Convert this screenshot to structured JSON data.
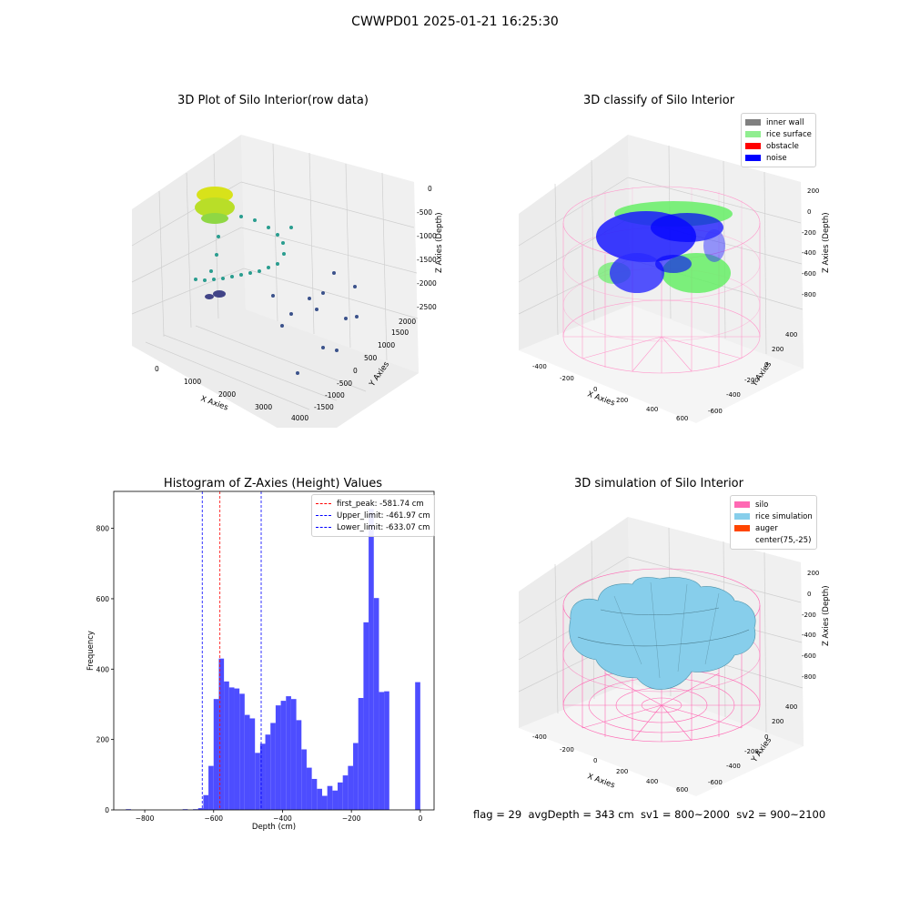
{
  "figure": {
    "suptitle": "CWWPD01 2025-01-21 16:25:30",
    "status_text": "flag = 29  avgDepth = 343 cm  sv1 = 800~2000  sv2 = 900~2100"
  },
  "chart_data": [
    {
      "type": "scatter",
      "projection": "3d",
      "title": "3D Plot of Silo Interior(row data)",
      "xlabel": "X Axies",
      "ylabel": "Y Axies",
      "zlabel": "Z Axies (Depth)",
      "x_ticks": [
        "0",
        "1000",
        "2000",
        "3000",
        "4000"
      ],
      "y_ticks": [
        "-1500",
        "-1000",
        "-500",
        "0",
        "500",
        "1000",
        "1500",
        "2000"
      ],
      "z_ticks": [
        "-2500",
        "-2000",
        "-1500",
        "-1000",
        "-500",
        "0"
      ],
      "xlim": [
        -500,
        4000
      ],
      "ylim": [
        -1700,
        2100
      ],
      "zlim": [
        -2600,
        0
      ],
      "colormap": "viridis",
      "grid": true
    },
    {
      "type": "scatter",
      "projection": "3d",
      "title": "3D classify of Silo Interior",
      "xlabel": "X Axies",
      "ylabel": "Y Axies",
      "zlabel": "Z Axies (Depth)",
      "x_ticks": [
        "-400",
        "-200",
        "0",
        "200",
        "400",
        "600"
      ],
      "y_ticks": [
        "-600",
        "-400",
        "-200",
        "0",
        "200",
        "400"
      ],
      "z_ticks": [
        "-800",
        "-600",
        "-400",
        "-200",
        "0",
        "200"
      ],
      "legend": [
        {
          "label": "inner wall",
          "color": "#808080"
        },
        {
          "label": "rice surface",
          "color": "#90ee90"
        },
        {
          "label": "obstacle",
          "color": "#ff0000"
        },
        {
          "label": "noise",
          "color": "#0000ff"
        }
      ],
      "legend_position": "top-right",
      "silo_color": "#ff99cc",
      "grid": true
    },
    {
      "type": "bar",
      "title": "Histogram of Z-Axies (Height) Values",
      "xlabel": "Depth (cm)",
      "ylabel": "Frequency",
      "xlim": [
        -890,
        40
      ],
      "ylim": [
        0,
        905
      ],
      "x_ticks": [
        -800,
        -600,
        -400,
        -200,
        0
      ],
      "y_ticks": [
        0,
        200,
        400,
        600,
        800
      ],
      "bin_width": 15,
      "bins": [
        {
          "x": -855,
          "count": 2
        },
        {
          "x": -690,
          "count": 2
        },
        {
          "x": -660,
          "count": 2
        },
        {
          "x": -645,
          "count": 5
        },
        {
          "x": -630,
          "count": 42
        },
        {
          "x": -615,
          "count": 125
        },
        {
          "x": -600,
          "count": 315
        },
        {
          "x": -585,
          "count": 430
        },
        {
          "x": -570,
          "count": 365
        },
        {
          "x": -555,
          "count": 348
        },
        {
          "x": -540,
          "count": 345
        },
        {
          "x": -525,
          "count": 330
        },
        {
          "x": -510,
          "count": 270
        },
        {
          "x": -495,
          "count": 260
        },
        {
          "x": -480,
          "count": 162
        },
        {
          "x": -465,
          "count": 188
        },
        {
          "x": -450,
          "count": 214
        },
        {
          "x": -435,
          "count": 247
        },
        {
          "x": -420,
          "count": 297
        },
        {
          "x": -405,
          "count": 310
        },
        {
          "x": -390,
          "count": 323
        },
        {
          "x": -375,
          "count": 315
        },
        {
          "x": -360,
          "count": 255
        },
        {
          "x": -345,
          "count": 172
        },
        {
          "x": -330,
          "count": 120
        },
        {
          "x": -315,
          "count": 88
        },
        {
          "x": -300,
          "count": 60
        },
        {
          "x": -285,
          "count": 40
        },
        {
          "x": -270,
          "count": 68
        },
        {
          "x": -255,
          "count": 55
        },
        {
          "x": -240,
          "count": 78
        },
        {
          "x": -225,
          "count": 98
        },
        {
          "x": -210,
          "count": 125
        },
        {
          "x": -195,
          "count": 190
        },
        {
          "x": -180,
          "count": 318
        },
        {
          "x": -165,
          "count": 533
        },
        {
          "x": -150,
          "count": 855
        },
        {
          "x": -135,
          "count": 602
        },
        {
          "x": -120,
          "count": 335
        },
        {
          "x": -105,
          "count": 337
        },
        {
          "x": -15,
          "count": 363
        }
      ],
      "bar_color": "#4d4dff",
      "vlines": [
        {
          "value": -581.74,
          "color": "#ff0000",
          "label": "first_peak: -581.74 cm"
        },
        {
          "value": -461.97,
          "color": "#0000ff",
          "label": "Upper_limit: -461.97 cm"
        },
        {
          "value": -633.07,
          "color": "#0000ff",
          "label": "Lower_limit: -633.07 cm"
        }
      ],
      "legend_position": "top-right",
      "grid": false
    },
    {
      "type": "surface",
      "projection": "3d",
      "title": "3D simulation of Silo Interior",
      "xlabel": "X Axies",
      "ylabel": "Y Axies",
      "zlabel": "Z Axies (Depth)",
      "x_ticks": [
        "-400",
        "-200",
        "0",
        "200",
        "400",
        "600"
      ],
      "y_ticks": [
        "-600",
        "-400",
        "-200",
        "0",
        "200",
        "400"
      ],
      "z_ticks": [
        "-800",
        "-600",
        "-400",
        "-200",
        "0",
        "200"
      ],
      "legend": [
        {
          "label": "silo",
          "color": "#ff69b4"
        },
        {
          "label": "rice simulation",
          "color": "#87ceeb"
        },
        {
          "label": "auger",
          "color": "#ff4500"
        },
        {
          "label": "center(75,-25)",
          "color": "#ffffff"
        }
      ],
      "legend_position": "top-right",
      "grid": true
    }
  ]
}
